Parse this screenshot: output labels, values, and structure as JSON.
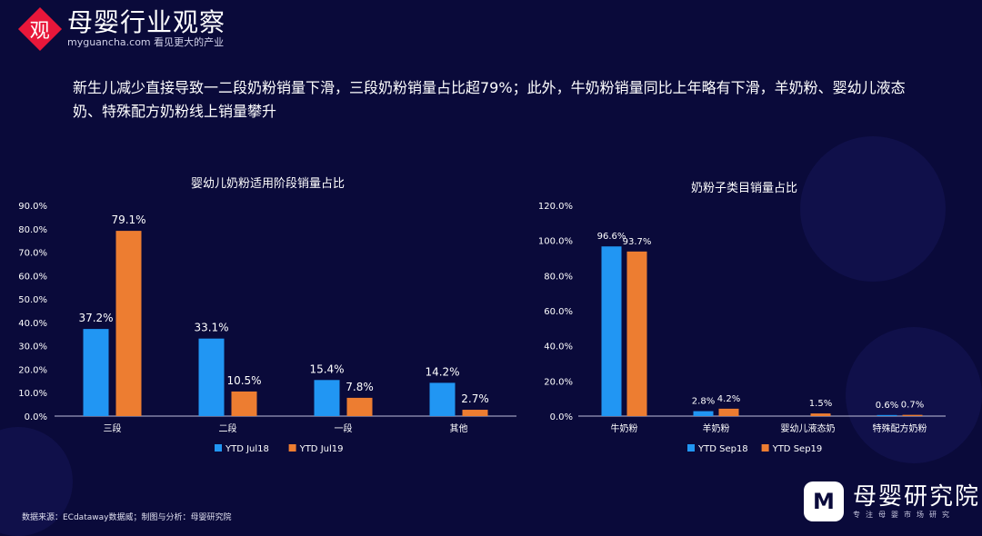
{
  "logo": {
    "mark": "观",
    "title": "母婴行业观察",
    "subtitle": "myguancha.com 看见更大的产业"
  },
  "headline": "新生儿减少直接导致一二段奶粉销量下滑，三段奶粉销量占比超79%；此外，牛奶粉销量同比上年略有下滑，羊奶粉、婴幼儿液态奶、特殊配方奶粉线上销量攀升",
  "footnote": "数据来源：ECdataway数据威；制图与分析：母婴研究院",
  "brand": {
    "mark": "M",
    "title": "母婴研究院",
    "subtitle": "专注母婴市场研究"
  },
  "colors": {
    "blue": "#2196f3",
    "orange": "#ed7d31",
    "axis": "#bfbfd9"
  },
  "chart_data": [
    {
      "type": "bar",
      "title": "婴幼儿奶粉适用阶段销量占比",
      "categories": [
        "三段",
        "二段",
        "一段",
        "其他"
      ],
      "series": [
        {
          "name": "YTD Jul18",
          "values": [
            37.2,
            33.1,
            15.4,
            14.2
          ]
        },
        {
          "name": "YTD Jul19",
          "values": [
            79.1,
            10.5,
            7.8,
            2.7
          ]
        }
      ],
      "ylim": [
        0,
        90
      ],
      "yticks": [
        "0.0%",
        "10.0%",
        "20.0%",
        "30.0%",
        "40.0%",
        "50.0%",
        "60.0%",
        "70.0%",
        "80.0%",
        "90.0%"
      ],
      "legend": "bottom"
    },
    {
      "type": "bar",
      "title": "奶粉子类目销量占比",
      "categories": [
        "牛奶粉",
        "羊奶粉",
        "婴幼儿液态奶",
        "特殊配方奶粉"
      ],
      "series": [
        {
          "name": "YTD Sep18",
          "values": [
            96.6,
            2.8,
            null,
            0.6
          ]
        },
        {
          "name": "YTD Sep19",
          "values": [
            93.7,
            4.2,
            1.5,
            0.7
          ]
        }
      ],
      "ylim": [
        0,
        120
      ],
      "yticks": [
        "0.0%",
        "20.0%",
        "40.0%",
        "60.0%",
        "80.0%",
        "100.0%",
        "120.0%"
      ],
      "legend": "bottom"
    }
  ]
}
